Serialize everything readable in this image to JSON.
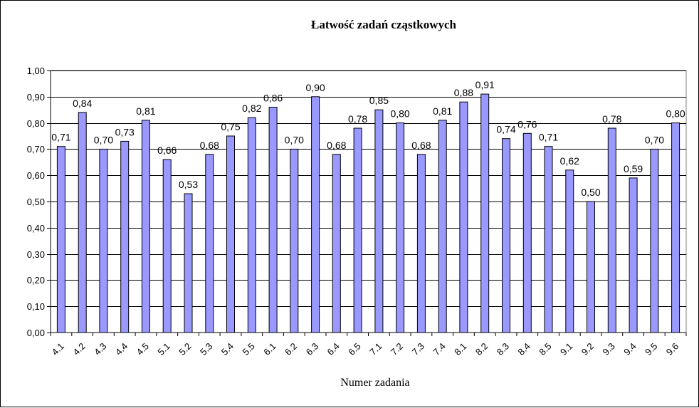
{
  "chart_data": {
    "type": "bar",
    "title": "Łatwość zadań cząstkowych",
    "xlabel": "Numer zadania",
    "ylabel": "",
    "ylim": [
      0,
      1
    ],
    "ytick_step": 0.1,
    "grid": true,
    "legend": "none",
    "bar_color": "#9999FF",
    "bar_edge_color": "#000000",
    "categories": [
      "4.1",
      "4.2",
      "4.3",
      "4.4",
      "4.5",
      "5.1",
      "5.2",
      "5.3",
      "5.4",
      "5.5",
      "6.1",
      "6.2",
      "6.3",
      "6.4",
      "6.5",
      "7.1",
      "7.2",
      "7.3",
      "7.4",
      "8.1",
      "8.2",
      "8.3",
      "8.4",
      "8.5",
      "9.1",
      "9.2",
      "9.3",
      "9.4",
      "9.5",
      "9.6"
    ],
    "values": [
      0.71,
      0.84,
      0.7,
      0.73,
      0.81,
      0.66,
      0.53,
      0.68,
      0.75,
      0.82,
      0.86,
      0.7,
      0.9,
      0.68,
      0.78,
      0.85,
      0.8,
      0.68,
      0.81,
      0.88,
      0.91,
      0.74,
      0.76,
      0.71,
      0.62,
      0.5,
      0.78,
      0.59,
      0.7,
      0.8
    ],
    "data_labels": [
      "0,71",
      "0,84",
      "0,70",
      "0,73",
      "0,81",
      "0,66",
      "0,53",
      "0,68",
      "0,75",
      "0,82",
      "0,86",
      "0,70",
      "0,90",
      "0,68",
      "0,78",
      "0,85",
      "0,80",
      "0,68",
      "0,81",
      "0,88",
      "0,91",
      "0,74",
      "0,76",
      "0,71",
      "0,62",
      "0,50",
      "0,78",
      "0,59",
      "0,70",
      "0,80"
    ],
    "ytick_labels": [
      "0,00",
      "0,10",
      "0,20",
      "0,30",
      "0,40",
      "0,50",
      "0,60",
      "0,70",
      "0,80",
      "0,90",
      "1,00"
    ]
  }
}
